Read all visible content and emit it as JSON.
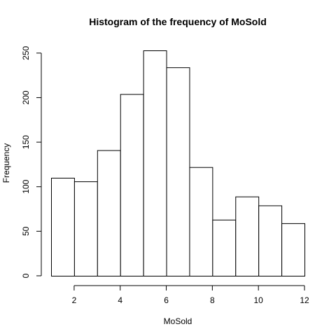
{
  "chart_data": {
    "type": "bar",
    "title": "Histogram of the frequency of MoSold",
    "xlabel": "MoSold",
    "ylabel": "Frequency",
    "bin_edges": [
      1,
      2,
      3,
      4,
      5,
      6,
      7,
      8,
      9,
      10,
      11,
      12
    ],
    "values": [
      110,
      106,
      141,
      204,
      253,
      234,
      122,
      63,
      89,
      79,
      59
    ],
    "xlim": [
      1,
      12
    ],
    "ylim": [
      0,
      253
    ],
    "x_ticks": [
      2,
      4,
      6,
      8,
      10,
      12
    ],
    "y_ticks": [
      0,
      50,
      100,
      150,
      200,
      250
    ],
    "bar_fill": "#ffffff",
    "bar_stroke": "#000000",
    "grid": false,
    "legend": "none"
  }
}
